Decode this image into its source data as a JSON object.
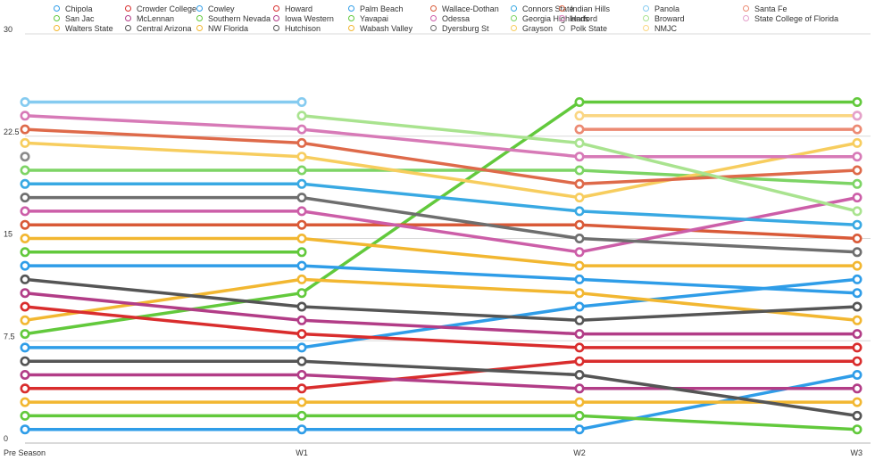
{
  "chart_data": {
    "type": "line",
    "categories": [
      "Pre Season",
      "W1",
      "W2",
      "W3"
    ],
    "ylim": [
      0,
      30
    ],
    "yticks": [
      "0",
      "7.5",
      "15",
      "22.5",
      "30"
    ],
    "grid": true,
    "legend_position": "top",
    "series": [
      {
        "name": "Chipola",
        "color": "#2f9de8",
        "values": [
          1,
          1,
          1,
          5
        ]
      },
      {
        "name": "San Jac",
        "color": "#62c93c",
        "values": [
          2,
          2,
          2,
          1
        ]
      },
      {
        "name": "Walters State",
        "color": "#f2b731",
        "values": [
          3,
          3,
          3,
          3
        ]
      },
      {
        "name": "Crowder College",
        "color": "#d92d2d",
        "values": [
          4,
          4,
          6,
          6
        ]
      },
      {
        "name": "McLennan",
        "color": "#b23d87",
        "values": [
          5,
          5,
          4,
          4
        ]
      },
      {
        "name": "Central Arizona",
        "color": "#555555",
        "values": [
          6,
          6,
          5,
          2
        ]
      },
      {
        "name": "Cowley",
        "color": "#2f9de8",
        "values": [
          7,
          7,
          10,
          12
        ]
      },
      {
        "name": "Southern Nevada",
        "color": "#62c93c",
        "values": [
          8,
          11,
          25,
          25
        ]
      },
      {
        "name": "NW Florida",
        "color": "#f2b731",
        "values": [
          9,
          12,
          11,
          9
        ]
      },
      {
        "name": "Howard",
        "color": "#d92d2d",
        "values": [
          10,
          8,
          7,
          7
        ]
      },
      {
        "name": "Iowa Western",
        "color": "#b23d87",
        "values": [
          11,
          9,
          8,
          8
        ]
      },
      {
        "name": "Hutchison",
        "color": "#555555",
        "values": [
          12,
          10,
          9,
          10
        ]
      },
      {
        "name": "Palm Beach",
        "color": "#2f9de8",
        "values": [
          13,
          13,
          12,
          11
        ]
      },
      {
        "name": "Yavapai",
        "color": "#62c93c",
        "values": [
          14,
          14,
          null,
          null
        ]
      },
      {
        "name": "Wabash Valley",
        "color": "#f2b731",
        "values": [
          15,
          15,
          13,
          13
        ]
      },
      {
        "name": "Wallace-Dothan",
        "color": "#d95a38",
        "values": [
          16,
          16,
          16,
          15
        ]
      },
      {
        "name": "Odessa",
        "color": "#cc5ea8",
        "values": [
          17,
          17,
          14,
          18
        ]
      },
      {
        "name": "Dyersburg St",
        "color": "#6e6e6e",
        "values": [
          18,
          18,
          15,
          14
        ]
      },
      {
        "name": "Connors State",
        "color": "#39a9e3",
        "values": [
          19,
          19,
          17,
          16
        ]
      },
      {
        "name": "Georgia Highlands",
        "color": "#7dd465",
        "values": [
          20,
          20,
          20,
          19
        ]
      },
      {
        "name": "Grayson",
        "color": "#f7cd5e",
        "values": [
          22,
          21,
          18,
          22
        ]
      },
      {
        "name": "Indian Hills",
        "color": "#de6a4a",
        "values": [
          23,
          22,
          19,
          20
        ]
      },
      {
        "name": "Harford",
        "color": "#d77ab7",
        "values": [
          24,
          23,
          21,
          21
        ]
      },
      {
        "name": "Polk State",
        "color": "#8a8a8a",
        "values": [
          21,
          null,
          null,
          null
        ]
      },
      {
        "name": "Panola",
        "color": "#85cbf0",
        "values": [
          25,
          25,
          null,
          null
        ]
      },
      {
        "name": "Broward",
        "color": "#a9e38f",
        "values": [
          null,
          24,
          22,
          17
        ]
      },
      {
        "name": "NMJC",
        "color": "#fad682",
        "values": [
          null,
          null,
          24,
          24
        ]
      },
      {
        "name": "Santa Fe",
        "color": "#ec8a73",
        "values": [
          null,
          null,
          23,
          23
        ]
      },
      {
        "name": "State College of Florida",
        "color": "#e4a0cb",
        "values": [
          null,
          null,
          null,
          24
        ]
      }
    ],
    "legend": [
      {
        "name": "Chipola",
        "color": "#2f9de8"
      },
      {
        "name": "San Jac",
        "color": "#62c93c"
      },
      {
        "name": "Walters State",
        "color": "#f2b731"
      },
      {
        "name": "Crowder College",
        "color": "#d92d2d"
      },
      {
        "name": "McLennan",
        "color": "#b23d87"
      },
      {
        "name": "Central Arizona",
        "color": "#555555"
      },
      {
        "name": "Cowley",
        "color": "#2f9de8"
      },
      {
        "name": "Southern Nevada",
        "color": "#62c93c"
      },
      {
        "name": "NW Florida",
        "color": "#f2b731"
      },
      {
        "name": "Howard",
        "color": "#d92d2d"
      },
      {
        "name": "Iowa Western",
        "color": "#b23d87"
      },
      {
        "name": "Hutchison",
        "color": "#555555"
      },
      {
        "name": "Palm Beach",
        "color": "#2f9de8"
      },
      {
        "name": "Yavapai",
        "color": "#62c93c"
      },
      {
        "name": "Wabash Valley",
        "color": "#f2b731"
      },
      {
        "name": "Wallace-Dothan",
        "color": "#d95a38"
      },
      {
        "name": "Odessa",
        "color": "#cc5ea8"
      },
      {
        "name": "Dyersburg St",
        "color": "#6e6e6e"
      },
      {
        "name": "Connors State",
        "color": "#39a9e3"
      },
      {
        "name": "Georgia Highlands",
        "color": "#7dd465"
      },
      {
        "name": "Grayson",
        "color": "#f7cd5e"
      },
      {
        "name": "Indian Hills",
        "color": "#de6a4a"
      },
      {
        "name": "Harford",
        "color": "#d77ab7"
      },
      {
        "name": "Polk State",
        "color": "#8a8a8a"
      },
      {
        "name": "Panola",
        "color": "#85cbf0"
      },
      {
        "name": "Broward",
        "color": "#a9e38f"
      },
      {
        "name": "NMJC",
        "color": "#fad682"
      },
      {
        "name": "Santa Fe",
        "color": "#ec8a73"
      },
      {
        "name": "State College of Florida",
        "color": "#e4a0cb"
      }
    ]
  }
}
